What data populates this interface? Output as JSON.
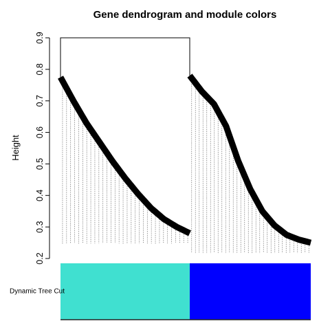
{
  "chart_data": {
    "type": "dendrogram",
    "title": "Gene dendrogram and module colors",
    "xlabel": "",
    "ylabel": "Height",
    "ylim": [
      0.2,
      0.9
    ],
    "y_ticks": [
      "0.2",
      "0.3",
      "0.4",
      "0.5",
      "0.6",
      "0.7",
      "0.8",
      "0.9"
    ],
    "root_height": 0.9,
    "clusters": [
      {
        "module_color": "#40E0D0",
        "top_height": 0.775,
        "curve": [
          [
            0.0,
            0.775
          ],
          [
            0.1,
            0.7
          ],
          [
            0.2,
            0.63
          ],
          [
            0.3,
            0.57
          ],
          [
            0.4,
            0.51
          ],
          [
            0.5,
            0.455
          ],
          [
            0.6,
            0.405
          ],
          [
            0.7,
            0.36
          ],
          [
            0.8,
            0.325
          ],
          [
            0.9,
            0.3
          ],
          [
            1.0,
            0.28
          ]
        ],
        "leaf_height": 0.265
      },
      {
        "module_color": "#0000FF",
        "top_height": 0.78,
        "curve": [
          [
            0.0,
            0.78
          ],
          [
            0.1,
            0.73
          ],
          [
            0.2,
            0.69
          ],
          [
            0.3,
            0.62
          ],
          [
            0.4,
            0.51
          ],
          [
            0.5,
            0.42
          ],
          [
            0.6,
            0.35
          ],
          [
            0.7,
            0.305
          ],
          [
            0.8,
            0.275
          ],
          [
            0.9,
            0.26
          ],
          [
            1.0,
            0.25
          ]
        ],
        "leaf_height": 0.235
      }
    ],
    "color_rows": [
      {
        "label": "Dynamic Tree Cut",
        "colors": [
          "#40E0D0",
          "#0000FF"
        ]
      }
    ]
  }
}
